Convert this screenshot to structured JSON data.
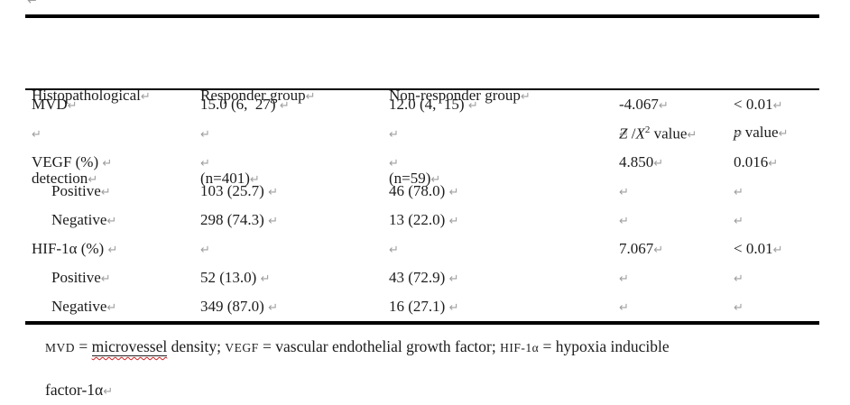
{
  "marks": {
    "return": "↵"
  },
  "table": {
    "header": {
      "col1": {
        "line1": "Histopathological",
        "line2": "detection"
      },
      "col2": {
        "line1": "Responder group",
        "line2": "(n=401)"
      },
      "col3": {
        "line1": "Non-responder group",
        "line2": "(n=59)"
      },
      "col4": {
        "z": "Z",
        "slash": " /",
        "x": "X",
        "sup": "2",
        "rest": " value"
      },
      "col5": {
        "p": "p",
        "rest": " value"
      }
    },
    "rows": [
      {
        "indent": false,
        "label": "MVD",
        "responder": "15.0 (6,  27) ",
        "nonresponder": "12.0 (4,  15) ",
        "z": "-4.067",
        "p": "< 0.01"
      },
      {
        "indent": false,
        "label": "",
        "responder": "",
        "nonresponder": "",
        "z": "",
        "p": ""
      },
      {
        "indent": false,
        "label": "VEGF (%) ",
        "responder": "",
        "nonresponder": "",
        "z": "4.850",
        "p": "0.016"
      },
      {
        "indent": true,
        "label": "Positive",
        "responder": "103 (25.7) ",
        "nonresponder": "46 (78.0) ",
        "z": "",
        "p": ""
      },
      {
        "indent": true,
        "label": "Negative",
        "responder": "298 (74.3) ",
        "nonresponder": "13 (22.0) ",
        "z": "",
        "p": ""
      },
      {
        "indent": false,
        "label": "HIF-1α (%) ",
        "responder": "",
        "nonresponder": "",
        "z": "7.067",
        "p": "< 0.01"
      },
      {
        "indent": true,
        "label": "Positive",
        "responder": "52 (13.0) ",
        "nonresponder": "43 (72.9) ",
        "z": "",
        "p": ""
      },
      {
        "indent": true,
        "label": "Negative",
        "responder": "349 (87.0) ",
        "nonresponder": "16 (27.1) ",
        "z": "",
        "p": ""
      }
    ]
  },
  "footnote": {
    "acr1": "MVD",
    "t1": " = ",
    "wavy": "microvessel",
    "t2": " density; ",
    "acr2": "VEGF",
    "t3": " = vascular endothelial growth factor; ",
    "acr3": "HIF-1α",
    "t4": " = hypoxia inducible",
    "line2": "factor-1α"
  }
}
